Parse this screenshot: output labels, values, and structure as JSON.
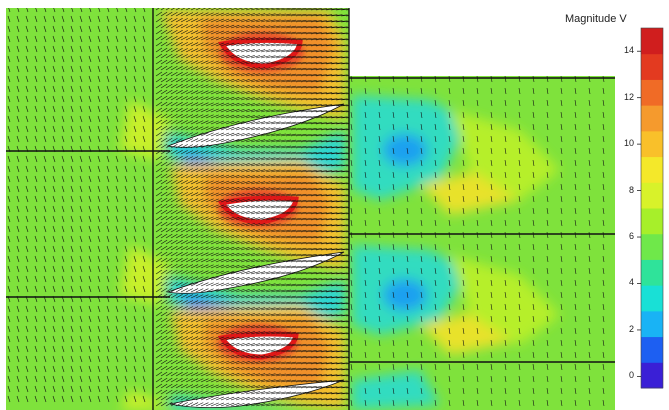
{
  "legend": {
    "title": "Magnitude V",
    "ticks": [
      "14",
      "12",
      "10",
      "8",
      "6",
      "4",
      "2",
      "0"
    ],
    "tick_values": [
      14,
      12,
      10,
      8,
      6,
      4,
      2,
      0
    ],
    "range": [
      -0.5,
      15
    ],
    "colors": [
      "#3a1fd6",
      "#1d5ff2",
      "#19b3f5",
      "#19e0d6",
      "#2fe39a",
      "#6fe84a",
      "#a7ef2a",
      "#d8f22a",
      "#f4e82a",
      "#f9c02a",
      "#f59a2d",
      "#f06b26",
      "#e33a20",
      "#d01e1e"
    ]
  },
  "palette": {
    "field": "#7fe23c",
    "low": "#1aa0f0",
    "mid": "#30e0c8",
    "high": "#f0a030",
    "peak": "#e02020",
    "vectors": "#111111",
    "blade": "#ffffff"
  }
}
